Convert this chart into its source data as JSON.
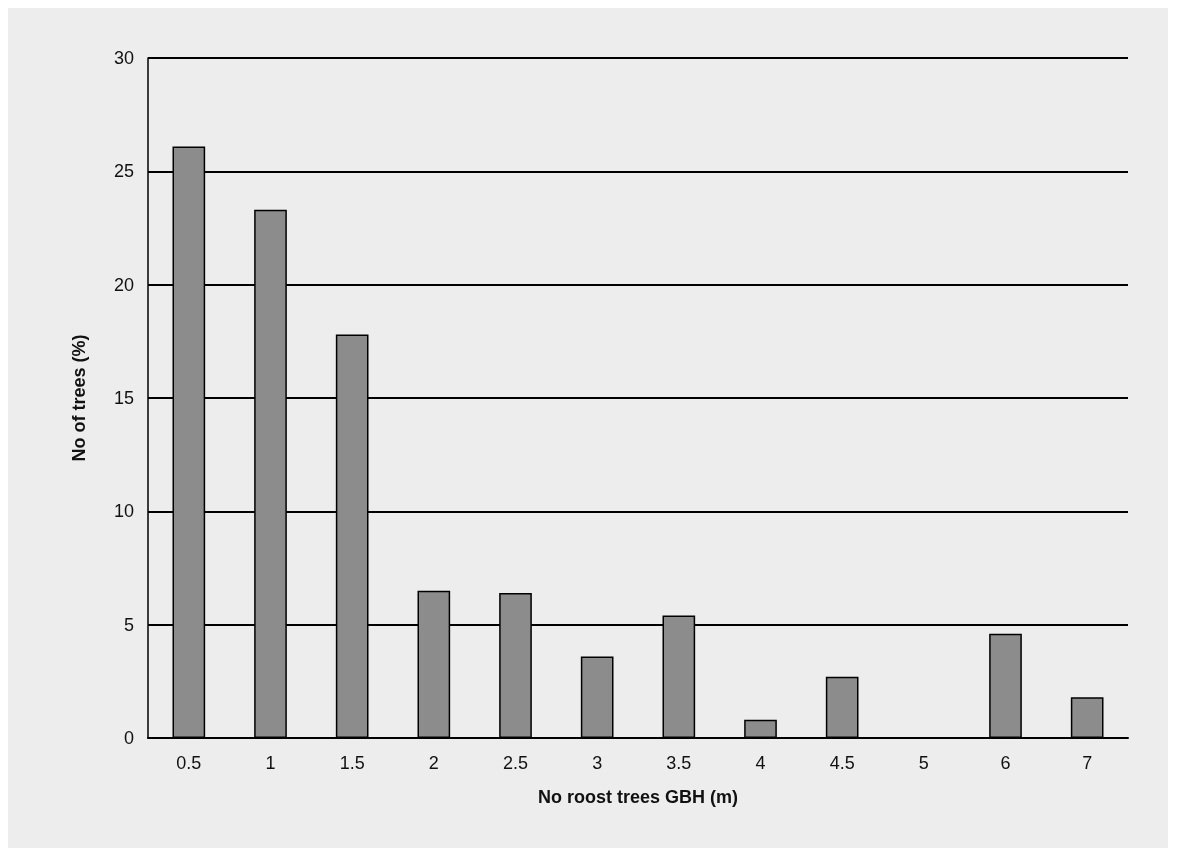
{
  "chart_data": {
    "type": "bar",
    "xlabel": "No roost trees GBH (m)",
    "ylabel": "No of trees (%)",
    "categories": [
      "0.5",
      "1",
      "1.5",
      "2",
      "2.5",
      "3",
      "3.5",
      "4",
      "4.5",
      "5",
      "6",
      "7"
    ],
    "values": [
      26.1,
      23.3,
      17.8,
      6.5,
      6.4,
      3.6,
      5.4,
      0.8,
      2.7,
      0,
      4.6,
      1.8
    ],
    "color": "#8c8c8c",
    "ylim": [
      0,
      30
    ],
    "yticks": [
      0,
      5,
      10,
      15,
      20,
      25,
      30
    ],
    "grid": "y"
  }
}
